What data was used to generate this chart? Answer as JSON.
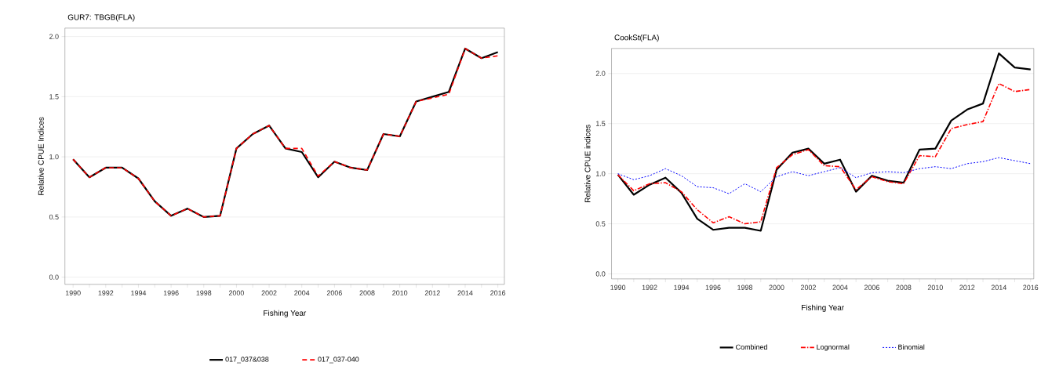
{
  "chart_data": [
    {
      "type": "line",
      "title": "GUR7: TBGB(FLA)",
      "xlabel": "Fishing Year",
      "ylabel": "Relative CPUE Indices",
      "x": [
        1990,
        1991,
        1992,
        1993,
        1994,
        1995,
        1996,
        1997,
        1998,
        1999,
        2000,
        2001,
        2002,
        2003,
        2004,
        2005,
        2006,
        2007,
        2008,
        2009,
        2010,
        2011,
        2012,
        2013,
        2014,
        2015,
        2016
      ],
      "series": [
        {
          "name": "017_037&038",
          "color": "#000000",
          "line_style": "solid",
          "values": [
            0.98,
            0.83,
            0.91,
            0.91,
            0.82,
            0.63,
            0.51,
            0.57,
            0.5,
            0.51,
            1.07,
            1.19,
            1.26,
            1.07,
            1.04,
            0.83,
            0.96,
            0.91,
            0.89,
            1.19,
            1.17,
            1.46,
            1.5,
            1.54,
            1.9,
            1.82,
            1.87
          ]
        },
        {
          "name": "017_037-040",
          "color": "#ff0000",
          "line_style": "dashed",
          "values": [
            0.98,
            0.83,
            0.91,
            0.91,
            0.82,
            0.63,
            0.51,
            0.57,
            0.5,
            0.51,
            1.07,
            1.19,
            1.26,
            1.07,
            1.07,
            0.84,
            0.96,
            0.91,
            0.89,
            1.19,
            1.17,
            1.46,
            1.49,
            1.52,
            1.9,
            1.82,
            1.84
          ]
        }
      ],
      "xlim": [
        1989.5,
        2016.4
      ],
      "ylim": [
        -0.06,
        2.07
      ],
      "xticks": [
        1990,
        {
          "value": 1991,
          "label": null
        },
        1992,
        {
          "value": 1993,
          "label": null
        },
        1994,
        {
          "value": 1995,
          "label": null
        },
        1996,
        {
          "value": 1997,
          "label": null
        },
        1998,
        {
          "value": 1999,
          "label": null
        },
        2000,
        {
          "value": 2001,
          "label": null
        },
        2002,
        {
          "value": 2003,
          "label": null
        },
        2004,
        {
          "value": 2005,
          "label": null
        },
        2006,
        {
          "value": 2007,
          "label": null
        },
        2008,
        {
          "value": 2009,
          "label": null
        },
        2010,
        {
          "value": 2011,
          "label": null
        },
        2012,
        {
          "value": 2013,
          "label": null
        },
        2014,
        {
          "value": 2015,
          "label": null
        },
        2016
      ],
      "yticks": [
        {
          "value": 0,
          "label": "0.0"
        },
        {
          "value": 0.5,
          "label": "0.5"
        },
        {
          "value": 1,
          "label": "1.0"
        },
        {
          "value": 1.5,
          "label": "1.5"
        },
        {
          "value": 2,
          "label": "2.0"
        }
      ],
      "grid": "y",
      "legend": "bottom",
      "marker": "none"
    },
    {
      "type": "line",
      "title": "CookSt(FLA)",
      "xlabel": "Fishing Year",
      "ylabel": "Relative CPUE indices",
      "x": [
        1990,
        1991,
        1992,
        1993,
        1994,
        1995,
        1996,
        1997,
        1998,
        1999,
        2000,
        2001,
        2002,
        2003,
        2004,
        2005,
        2006,
        2007,
        2008,
        2009,
        2010,
        2011,
        2012,
        2013,
        2014,
        2015,
        2016
      ],
      "series": [
        {
          "name": "Combined",
          "color": "#000000",
          "line_style": "solid",
          "values": [
            0.99,
            0.79,
            0.89,
            0.96,
            0.81,
            0.55,
            0.44,
            0.46,
            0.46,
            0.43,
            1.04,
            1.21,
            1.25,
            1.1,
            1.14,
            0.82,
            0.98,
            0.93,
            0.91,
            1.24,
            1.25,
            1.53,
            1.64,
            1.7,
            2.2,
            2.06,
            2.04
          ]
        },
        {
          "name": "Lognormal",
          "color": "#ff0000",
          "line_style": "dashdot",
          "values": [
            0.99,
            0.83,
            0.9,
            0.91,
            0.82,
            0.64,
            0.51,
            0.57,
            0.5,
            0.52,
            1.06,
            1.19,
            1.24,
            1.08,
            1.07,
            0.84,
            0.97,
            0.92,
            0.9,
            1.18,
            1.17,
            1.45,
            1.49,
            1.52,
            1.9,
            1.82,
            1.84
          ]
        },
        {
          "name": "Binomial",
          "color": "#0000ff",
          "line_style": "dotted",
          "values": [
            1.0,
            0.94,
            0.98,
            1.05,
            0.98,
            0.87,
            0.86,
            0.8,
            0.9,
            0.82,
            0.97,
            1.02,
            0.98,
            1.02,
            1.06,
            0.96,
            1.01,
            1.02,
            1.01,
            1.05,
            1.07,
            1.05,
            1.1,
            1.12,
            1.16,
            1.13,
            1.1
          ]
        }
      ],
      "xlim": [
        1989.6,
        2016.2
      ],
      "ylim": [
        -0.05,
        2.25
      ],
      "xticks": [
        1990,
        {
          "value": 1991,
          "label": null
        },
        1992,
        {
          "value": 1993,
          "label": null
        },
        1994,
        {
          "value": 1995,
          "label": null
        },
        1996,
        {
          "value": 1997,
          "label": null
        },
        1998,
        {
          "value": 1999,
          "label": null
        },
        2000,
        {
          "value": 2001,
          "label": null
        },
        2002,
        {
          "value": 2003,
          "label": null
        },
        2004,
        {
          "value": 2005,
          "label": null
        },
        2006,
        {
          "value": 2007,
          "label": null
        },
        2008,
        {
          "value": 2009,
          "label": null
        },
        2010,
        {
          "value": 2011,
          "label": null
        },
        2012,
        {
          "value": 2013,
          "label": null
        },
        2014,
        {
          "value": 2015,
          "label": null
        },
        2016
      ],
      "yticks": [
        {
          "value": 0,
          "label": "0.0"
        },
        {
          "value": 0.5,
          "label": "0.5"
        },
        {
          "value": 1,
          "label": "1.0"
        },
        {
          "value": 1.5,
          "label": "1.5"
        },
        {
          "value": 2,
          "label": "2.0"
        }
      ],
      "grid": "y",
      "legend": "bottom",
      "marker": "none"
    }
  ]
}
